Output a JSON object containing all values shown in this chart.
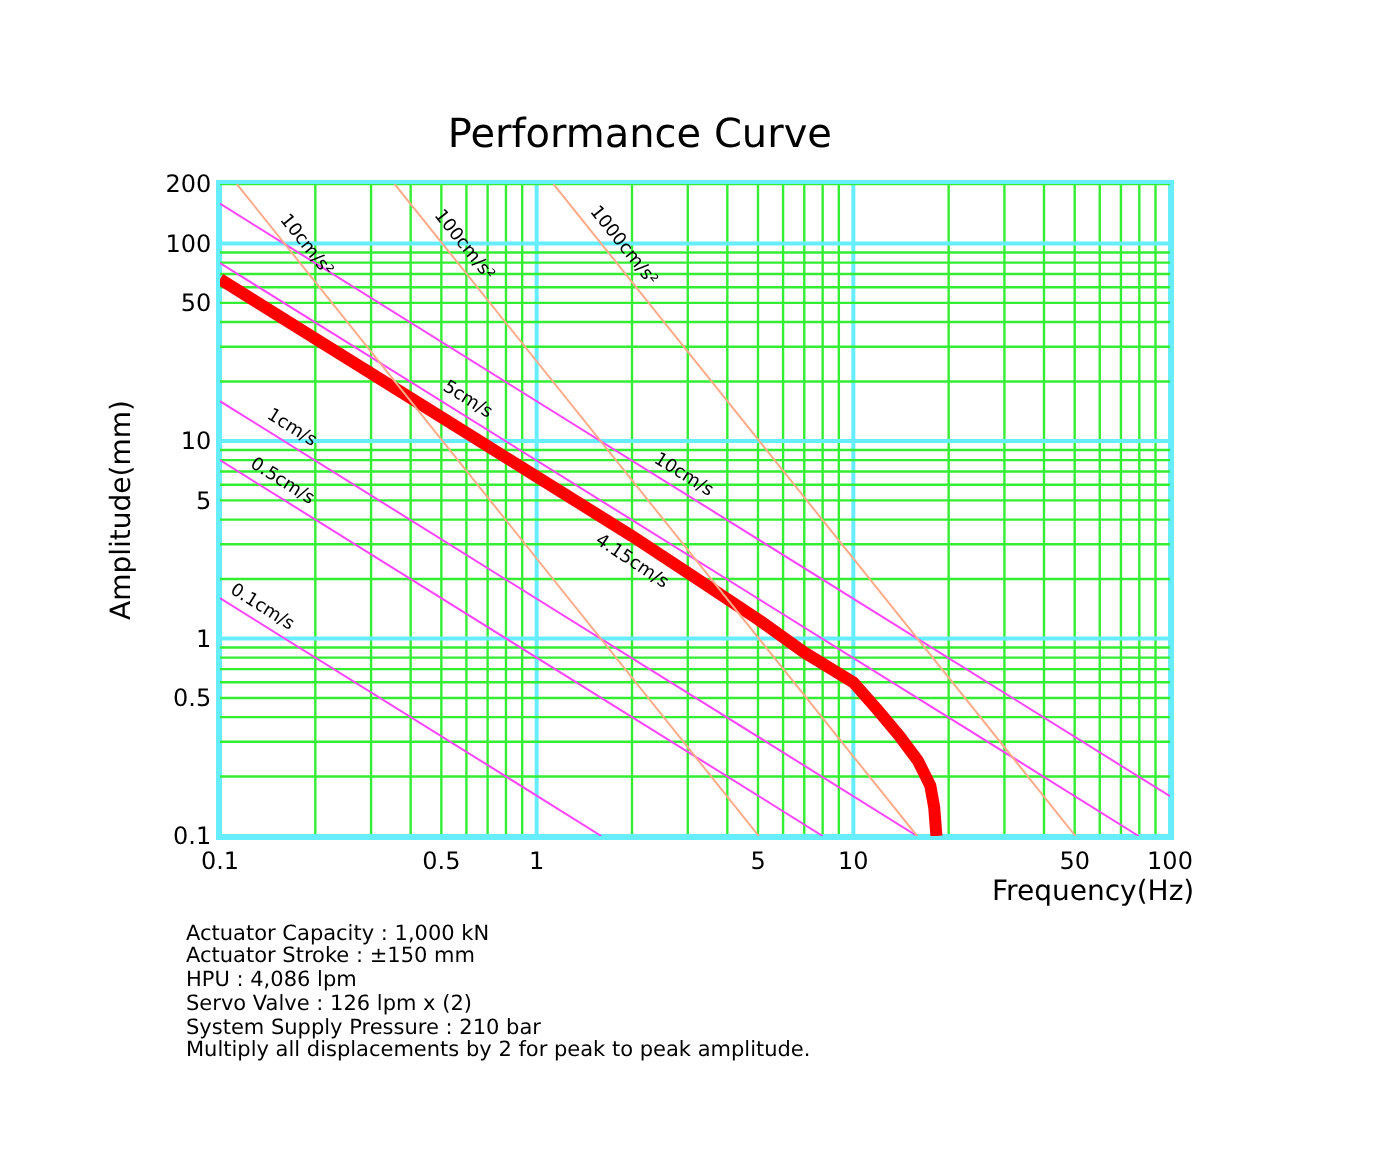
{
  "chart_data": {
    "type": "line",
    "title": "Performance Curve",
    "xlabel": "Frequency(Hz)",
    "ylabel": "Amplitude(mm)",
    "log": "xy",
    "grid": true,
    "legend": false,
    "marker": "none",
    "line_style": "solid",
    "xlim": [
      0.1,
      100
    ],
    "xticks": [
      0.1,
      0.5,
      1,
      5,
      10,
      50,
      100
    ],
    "ylim": [
      0.1,
      200
    ],
    "yticks": [
      0.1,
      0.5,
      1,
      5,
      10,
      50,
      100,
      200
    ],
    "series": [
      {
        "name": "4.15cm/s",
        "color": "#ff0000",
        "x": [
          0.1,
          0.2,
          0.5,
          1,
          2,
          3,
          5,
          7,
          10,
          12,
          14,
          16,
          17.5,
          18,
          18.3
        ],
        "values": [
          66,
          33,
          13.2,
          6.6,
          3.3,
          2.15,
          1.25,
          0.85,
          0.6,
          0.43,
          0.32,
          0.24,
          0.18,
          0.14,
          0.1
        ]
      },
      {
        "name": "10cm/s",
        "color": "#ff44ff",
        "x": [
          0.1,
          100
        ],
        "values": [
          159,
          0.159
        ]
      },
      {
        "name": "5cm/s",
        "color": "#ff44ff",
        "x": [
          0.1,
          79.6
        ],
        "values": [
          79.6,
          0.1
        ]
      },
      {
        "name": "1cm/s",
        "color": "#ff44ff",
        "x": [
          0.1,
          15.9
        ],
        "values": [
          15.9,
          0.1
        ]
      },
      {
        "name": "0.5cm/s",
        "color": "#ff44ff",
        "x": [
          0.1,
          8
        ],
        "values": [
          8,
          0.1
        ]
      },
      {
        "name": "0.1cm/s",
        "color": "#ff44ff",
        "x": [
          0.1,
          1.6
        ],
        "values": [
          1.6,
          0.1
        ]
      },
      {
        "name": "10cm/s²",
        "color": "#ffaa88",
        "x": [
          0.113,
          5.03
        ],
        "values": [
          200,
          0.1
        ]
      },
      {
        "name": "100cm/s²",
        "color": "#ffaa88",
        "x": [
          0.356,
          15.9
        ],
        "values": [
          200,
          0.1
        ]
      },
      {
        "name": "1000cm/s²",
        "color": "#ffaa88",
        "x": [
          1.13,
          50.3
        ],
        "values": [
          200,
          0.1
        ]
      }
    ],
    "annotations": [
      "Actuator Capacity : 1,000 kN",
      "Actuator Stroke : ±150 mm",
      "HPU : 4,086 lpm",
      "Servo Valve : 126 lpm x (2)",
      "System Supply Pressure : 210 bar",
      "Multiply all displacements by 2 for peak to peak amplitude."
    ]
  }
}
